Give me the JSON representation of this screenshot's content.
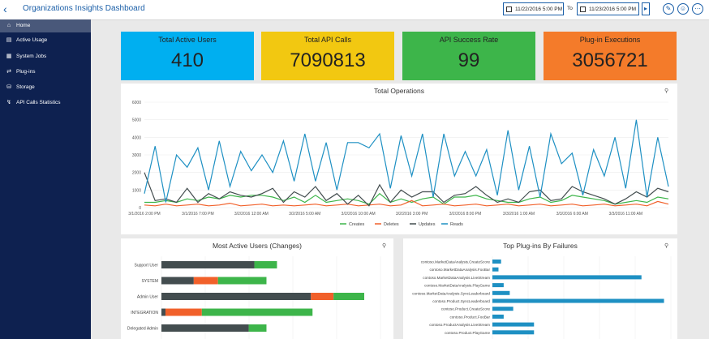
{
  "header": {
    "title": "Organizations Insights Dashboard",
    "date_from": "11/22/2016 5:00 PM",
    "to_label": "To",
    "date_to": "11/23/2016 5:00 PM"
  },
  "sidebar": {
    "items": [
      {
        "label": "Home",
        "icon": "home-icon"
      },
      {
        "label": "Active Usage",
        "icon": "bar-chart-icon"
      },
      {
        "label": "System Jobs",
        "icon": "calendar-icon"
      },
      {
        "label": "Plug-ins",
        "icon": "shuffle-icon"
      },
      {
        "label": "Storage",
        "icon": "database-icon"
      },
      {
        "label": "API Calls Statistics",
        "icon": "lightning-icon"
      }
    ]
  },
  "kpis": [
    {
      "label": "Total Active Users",
      "value": "410",
      "color": "#00aff0"
    },
    {
      "label": "Total API Calls",
      "value": "7090813",
      "color": "#f2c811"
    },
    {
      "label": "API Success Rate",
      "value": "99",
      "color": "#3db54a"
    },
    {
      "label": "Plug-in Executions",
      "value": "3056721",
      "color": "#f47b2a"
    }
  ],
  "colors": {
    "creates": "#3db54a",
    "deletes": "#f1602a",
    "updates": "#434d4f",
    "reads": "#1e90c3"
  },
  "chart_data": [
    {
      "type": "line",
      "title": "Total Operations",
      "ylim": [
        0,
        6000
      ],
      "yticks": [
        "0",
        "1000",
        "2000",
        "3000",
        "4000",
        "5000",
        "6000"
      ],
      "x_tick_labels": [
        "3/1/2016 2:00 PM",
        "3/1/2016 7:00 PM",
        "3/2/2016 12:00 AM",
        "3/2/2016 5:00 AM",
        "3/2/2016 10:00 AM",
        "3/2/2016 3:00 PM",
        "3/2/2016 8:00 PM",
        "3/3/2016 1:00 AM",
        "3/3/2016 6:00 AM",
        "3/3/2016 11:00 AM"
      ],
      "x_tick_positions": [
        0,
        5,
        10,
        15,
        20,
        25,
        30,
        35,
        40,
        45
      ],
      "x_count": 50,
      "legend_position": "bottom",
      "series": [
        {
          "name": "Creates",
          "color": "#3db54a",
          "values": [
            300,
            300,
            400,
            300,
            500,
            400,
            600,
            500,
            700,
            600,
            700,
            700,
            600,
            400,
            600,
            300,
            700,
            300,
            400,
            500,
            400,
            200,
            800,
            300,
            500,
            300,
            500,
            600,
            200,
            600,
            600,
            700,
            500,
            400,
            300,
            300,
            500,
            600,
            300,
            400,
            700,
            600,
            500,
            400,
            200,
            300,
            400,
            300,
            600,
            500
          ]
        },
        {
          "name": "Deletes",
          "color": "#f1602a",
          "values": [
            150,
            100,
            200,
            100,
            150,
            200,
            100,
            150,
            250,
            100,
            150,
            200,
            100,
            150,
            100,
            150,
            200,
            100,
            150,
            200,
            100,
            150,
            200,
            100,
            150,
            400,
            100,
            150,
            200,
            100,
            150,
            200,
            100,
            150,
            200,
            100,
            150,
            200,
            100,
            150,
            200,
            100,
            150,
            200,
            100,
            150,
            200,
            100,
            350,
            200
          ]
        },
        {
          "name": "Updates",
          "color": "#434d4f",
          "values": [
            2000,
            400,
            500,
            300,
            1100,
            300,
            800,
            500,
            900,
            700,
            600,
            800,
            1100,
            300,
            900,
            600,
            1200,
            400,
            800,
            200,
            700,
            100,
            1300,
            300,
            1000,
            600,
            900,
            900,
            300,
            700,
            800,
            1200,
            700,
            300,
            500,
            300,
            900,
            1000,
            400,
            500,
            1200,
            900,
            700,
            500,
            200,
            500,
            900,
            600,
            1100,
            900
          ]
        },
        {
          "name": "Reads",
          "color": "#1e90c3",
          "values": [
            800,
            3500,
            300,
            3000,
            2300,
            3400,
            1000,
            3800,
            1200,
            3200,
            2100,
            3000,
            2000,
            3800,
            1500,
            4200,
            1500,
            3700,
            1000,
            3700,
            3700,
            3400,
            4200,
            1100,
            4100,
            1800,
            4200,
            600,
            4200,
            1800,
            3200,
            1800,
            3300,
            700,
            4400,
            1000,
            3500,
            600,
            4200,
            2500,
            3100,
            700,
            3300,
            1800,
            4000,
            1100,
            5000,
            600,
            4000,
            1200
          ]
        }
      ]
    },
    {
      "type": "bar",
      "orientation": "horizontal",
      "stacked": true,
      "title": "Most Active Users (Changes)",
      "categories": [
        "Support User",
        "SYSTEM",
        "Admin User",
        "INTEGRATION",
        "Delegated Admin"
      ],
      "series": [
        {
          "name": "Updates",
          "color": "#434d4f",
          "values": [
            115,
            40,
            185,
            5,
            108
          ]
        },
        {
          "name": "Deletes",
          "color": "#f1602a",
          "values": [
            0,
            30,
            28,
            45,
            0
          ]
        },
        {
          "name": "Creates",
          "color": "#3db54a",
          "values": [
            28,
            60,
            38,
            137,
            22
          ]
        }
      ]
    },
    {
      "type": "bar",
      "orientation": "horizontal",
      "title": "Top Plug-ins By Failures",
      "categories": [
        "contoso.MarketDataAnalysis.CreateScore",
        "contoso.MarketDataAnalysis.FooBar",
        "contoso.MarketDataAnalysis.LiveStream",
        "contoso.MarketDataAnalysis.PlayGame",
        "contoso.MarketDataAnalysis.SyncLeaderboard",
        "contoso.Product.SyncLeaderboard",
        "contoso.Product.CreateScore",
        "contoso.Product.FooBar",
        "contoso.ProductAnalysis.LiveStream",
        "contoso.Product.PlayGame"
      ],
      "series": [
        {
          "name": "Failures",
          "color": "#1e90c3",
          "values": [
            10,
            7,
            172,
            13,
            20,
            198,
            24,
            13,
            48,
            48
          ]
        }
      ]
    }
  ]
}
